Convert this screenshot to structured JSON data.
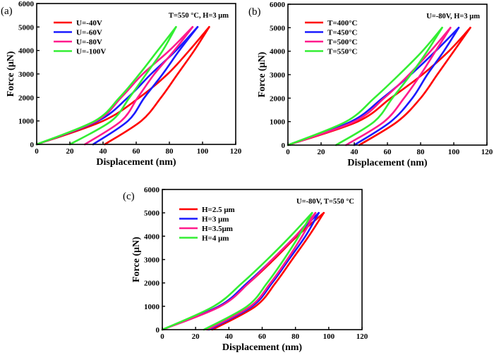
{
  "chart_data": [
    {
      "type": "line",
      "panel_label": "(a)",
      "annotation": "T=550 °C, H=3 μm",
      "xlabel": "Displacement (nm)",
      "ylabel": "Force (μN)",
      "xlim": [
        0,
        120
      ],
      "ylim": [
        0,
        6000
      ],
      "xticks": [
        "0",
        "20",
        "40",
        "60",
        "80",
        "100",
        "120"
      ],
      "yticks": [
        "0",
        "1000",
        "2000",
        "3000",
        "4000",
        "5000",
        "6000"
      ],
      "grid": false,
      "legend_position": "top-left",
      "force_levels": [
        0,
        1000,
        2000,
        3000,
        4000,
        5000
      ],
      "series": [
        {
          "name": "U=-40V",
          "color": "#ff0000",
          "loading_x": [
            0,
            40,
            62,
            79,
            92,
            104
          ],
          "unloading_x": [
            41,
            63,
            75,
            85,
            95,
            104
          ]
        },
        {
          "name": "U=-60V",
          "color": "#1a1aff",
          "loading_x": [
            0,
            37,
            55,
            69,
            84,
            97
          ],
          "unloading_x": [
            34,
            55,
            65,
            76,
            86,
            97
          ]
        },
        {
          "name": "U=-80V",
          "color": "#ff1a8c",
          "loading_x": [
            0,
            36,
            51,
            64,
            80,
            94
          ],
          "unloading_x": [
            29,
            51,
            61,
            71,
            83,
            94
          ]
        },
        {
          "name": "U=-100V",
          "color": "#33ee33",
          "loading_x": [
            0,
            35,
            50,
            62,
            73,
            84
          ],
          "unloading_x": [
            20,
            45,
            56,
            66,
            76,
            84
          ]
        }
      ]
    },
    {
      "type": "line",
      "panel_label": "(b)",
      "annotation": "U=-80V, H=3 μm",
      "xlabel": "Displacement (nm)",
      "ylabel": "Force (μN)",
      "xlim": [
        0,
        120
      ],
      "ylim": [
        0,
        6000
      ],
      "xticks": [
        "0",
        "20",
        "40",
        "60",
        "80",
        "100",
        "120"
      ],
      "yticks": [
        "0",
        "1000",
        "2000",
        "3000",
        "4000",
        "5000",
        "6000"
      ],
      "grid": false,
      "legend_position": "top-left",
      "force_levels": [
        0,
        1000,
        2000,
        3000,
        4000,
        5000
      ],
      "series": [
        {
          "name": "T=400°C",
          "color": "#ff0000",
          "loading_x": [
            0,
            42,
            62,
            81,
            97,
            110
          ],
          "unloading_x": [
            43,
            66,
            80,
            90,
            100,
            110
          ]
        },
        {
          "name": "T=450°C",
          "color": "#1a1aff",
          "loading_x": [
            0,
            38,
            57,
            74,
            89,
            103
          ],
          "unloading_x": [
            40,
            62,
            75,
            84,
            94,
            103
          ]
        },
        {
          "name": "T=500°C",
          "color": "#ff1a8c",
          "loading_x": [
            0,
            40,
            58,
            73,
            86,
            98
          ],
          "unloading_x": [
            35,
            58,
            70,
            80,
            89,
            98
          ]
        },
        {
          "name": "T=550°C",
          "color": "#33ee33",
          "loading_x": [
            0,
            35,
            52,
            67,
            81,
            93
          ],
          "unloading_x": [
            29,
            52,
            63,
            74,
            84,
            93
          ]
        }
      ]
    },
    {
      "type": "line",
      "panel_label": "(c)",
      "annotation": "U=-80V, T=550 °C",
      "xlabel": "Displacement (nm)",
      "ylabel": "Force (μN)",
      "xlim": [
        0,
        120
      ],
      "ylim": [
        0,
        6000
      ],
      "xticks": [
        "0",
        "20",
        "40",
        "60",
        "80",
        "100",
        "120"
      ],
      "yticks": [
        "0",
        "1000",
        "2000",
        "3000",
        "4000",
        "5000",
        "6000"
      ],
      "grid": false,
      "legend_position": "top-left",
      "force_levels": [
        0,
        1000,
        2000,
        3000,
        4000,
        5000
      ],
      "series": [
        {
          "name": "H=2.5 μm",
          "color": "#ff0000",
          "loading_x": [
            0,
            34,
            52,
            67,
            81,
            97
          ],
          "unloading_x": [
            30,
            56,
            68,
            78,
            88,
            97
          ]
        },
        {
          "name": "H=3 μm",
          "color": "#1a1aff",
          "loading_x": [
            0,
            34,
            51,
            66,
            80,
            94
          ],
          "unloading_x": [
            28,
            54,
            66,
            76,
            86,
            94
          ]
        },
        {
          "name": "H=3.5μm",
          "color": "#ff1a8c",
          "loading_x": [
            0,
            35,
            52,
            66,
            80,
            92
          ],
          "unloading_x": [
            27,
            53,
            65,
            75,
            84,
            92
          ]
        },
        {
          "name": "H=4 μm",
          "color": "#33ee33",
          "loading_x": [
            0,
            31,
            48,
            63,
            77,
            90
          ],
          "unloading_x": [
            25,
            51,
            63,
            73,
            82,
            90
          ]
        }
      ]
    }
  ]
}
